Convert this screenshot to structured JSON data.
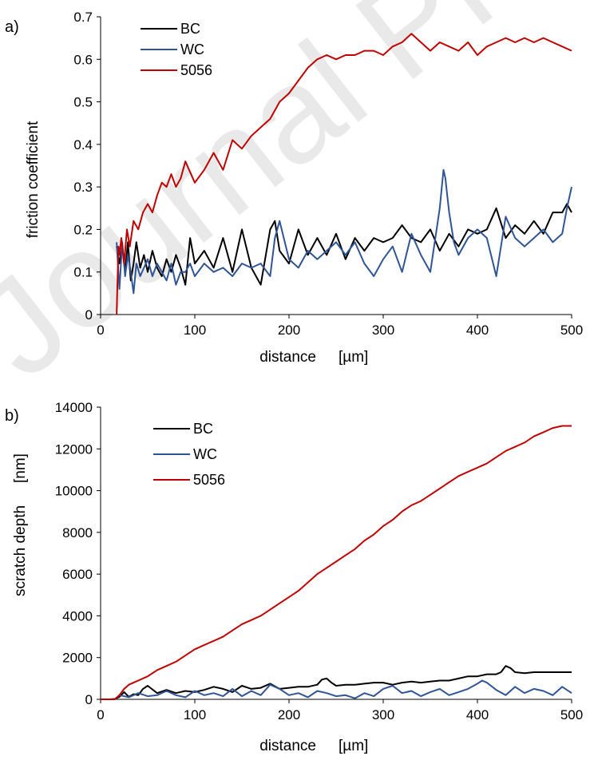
{
  "watermark": "Journal Pre-proof",
  "colors": {
    "BC": "#000000",
    "WC": "#2f5597",
    "5056": "#c00000"
  },
  "chart_data": [
    {
      "panel": "a)",
      "type": "line",
      "xlabel": "distance",
      "xunit": "[µm]",
      "ylabel": "friction coefficient",
      "xlim": [
        0,
        500
      ],
      "ylim": [
        0,
        0.7
      ],
      "xticks": [
        0,
        100,
        200,
        300,
        400,
        500
      ],
      "yticks": [
        0,
        0.1,
        0.2,
        0.3,
        0.4,
        0.5,
        0.6,
        0.7
      ],
      "ytick_labels": [
        "0",
        "0.1",
        "0.2",
        "0.3",
        "0.4",
        "0.5",
        "0.6",
        "0.7"
      ],
      "legend_position": "top-left",
      "series": [
        {
          "name": "BC",
          "color": "#000000",
          "x": [
            17,
            20,
            23,
            26,
            29,
            32,
            35,
            38,
            42,
            46,
            50,
            55,
            60,
            65,
            70,
            75,
            80,
            85,
            90,
            95,
            100,
            110,
            120,
            130,
            140,
            150,
            160,
            170,
            180,
            185,
            190,
            200,
            210,
            220,
            230,
            240,
            250,
            260,
            270,
            280,
            290,
            300,
            310,
            320,
            330,
            340,
            350,
            360,
            370,
            380,
            390,
            400,
            410,
            420,
            430,
            440,
            450,
            460,
            470,
            480,
            490,
            495,
            500
          ],
          "y": [
            0.16,
            0.12,
            0.16,
            0.1,
            0.17,
            0.08,
            0.12,
            0.17,
            0.11,
            0.14,
            0.1,
            0.15,
            0.11,
            0.09,
            0.13,
            0.1,
            0.14,
            0.11,
            0.07,
            0.18,
            0.12,
            0.15,
            0.11,
            0.18,
            0.1,
            0.2,
            0.11,
            0.07,
            0.2,
            0.22,
            0.15,
            0.12,
            0.2,
            0.14,
            0.18,
            0.14,
            0.19,
            0.13,
            0.18,
            0.15,
            0.18,
            0.17,
            0.18,
            0.21,
            0.18,
            0.17,
            0.2,
            0.15,
            0.19,
            0.16,
            0.2,
            0.19,
            0.2,
            0.25,
            0.18,
            0.21,
            0.19,
            0.22,
            0.19,
            0.24,
            0.24,
            0.26,
            0.24
          ]
        },
        {
          "name": "WC",
          "color": "#2f5597",
          "x": [
            17,
            20,
            23,
            26,
            29,
            32,
            35,
            38,
            42,
            46,
            50,
            55,
            60,
            65,
            70,
            75,
            80,
            85,
            90,
            95,
            100,
            110,
            120,
            130,
            140,
            150,
            160,
            170,
            180,
            185,
            190,
            200,
            210,
            220,
            230,
            240,
            250,
            260,
            270,
            280,
            290,
            300,
            310,
            320,
            330,
            340,
            350,
            360,
            364,
            366,
            368,
            370,
            375,
            380,
            390,
            400,
            410,
            420,
            430,
            440,
            450,
            460,
            470,
            480,
            490,
            495,
            500
          ],
          "y": [
            0.17,
            0.06,
            0.17,
            0.09,
            0.14,
            0.1,
            0.05,
            0.12,
            0.09,
            0.11,
            0.13,
            0.09,
            0.12,
            0.1,
            0.08,
            0.12,
            0.07,
            0.1,
            0.1,
            0.12,
            0.09,
            0.12,
            0.1,
            0.11,
            0.09,
            0.12,
            0.11,
            0.12,
            0.09,
            0.18,
            0.22,
            0.13,
            0.11,
            0.15,
            0.13,
            0.15,
            0.17,
            0.14,
            0.17,
            0.12,
            0.09,
            0.13,
            0.16,
            0.1,
            0.19,
            0.14,
            0.1,
            0.25,
            0.34,
            0.32,
            0.28,
            0.24,
            0.17,
            0.14,
            0.18,
            0.2,
            0.18,
            0.09,
            0.23,
            0.18,
            0.16,
            0.18,
            0.2,
            0.17,
            0.19,
            0.25,
            0.3
          ]
        },
        {
          "name": "5056",
          "color": "#c00000",
          "x": [
            17,
            18,
            19,
            20,
            22,
            25,
            28,
            31,
            35,
            40,
            45,
            50,
            55,
            60,
            65,
            70,
            75,
            80,
            85,
            90,
            100,
            110,
            120,
            130,
            140,
            150,
            160,
            170,
            180,
            190,
            200,
            210,
            220,
            230,
            240,
            250,
            260,
            270,
            280,
            290,
            300,
            310,
            320,
            330,
            340,
            350,
            360,
            370,
            380,
            390,
            400,
            410,
            420,
            430,
            440,
            450,
            460,
            470,
            480,
            490,
            500
          ],
          "y": [
            0.0,
            0.08,
            0.16,
            0.14,
            0.18,
            0.12,
            0.2,
            0.16,
            0.22,
            0.2,
            0.24,
            0.26,
            0.24,
            0.28,
            0.31,
            0.3,
            0.33,
            0.3,
            0.32,
            0.36,
            0.31,
            0.34,
            0.38,
            0.34,
            0.41,
            0.39,
            0.42,
            0.44,
            0.46,
            0.5,
            0.52,
            0.55,
            0.58,
            0.6,
            0.61,
            0.6,
            0.61,
            0.61,
            0.62,
            0.62,
            0.61,
            0.63,
            0.64,
            0.66,
            0.64,
            0.62,
            0.64,
            0.63,
            0.62,
            0.64,
            0.61,
            0.63,
            0.64,
            0.65,
            0.64,
            0.65,
            0.64,
            0.65,
            0.64,
            0.63,
            0.62
          ]
        }
      ]
    },
    {
      "panel": "b)",
      "type": "line",
      "xlabel": "distance",
      "xunit": "[µm]",
      "ylabel": "scratch depth",
      "yunit": "[nm]",
      "xlim": [
        0,
        500
      ],
      "ylim": [
        0,
        14000
      ],
      "xticks": [
        0,
        100,
        200,
        300,
        400,
        500
      ],
      "yticks": [
        0,
        2000,
        4000,
        6000,
        8000,
        10000,
        12000,
        14000
      ],
      "legend_position": "top-left",
      "series": [
        {
          "name": "BC",
          "color": "#000000",
          "x": [
            0,
            10,
            15,
            20,
            25,
            30,
            35,
            40,
            45,
            50,
            60,
            70,
            80,
            90,
            100,
            110,
            120,
            130,
            140,
            150,
            160,
            170,
            180,
            190,
            200,
            210,
            220,
            230,
            235,
            240,
            245,
            250,
            260,
            270,
            280,
            290,
            300,
            310,
            320,
            330,
            340,
            350,
            360,
            370,
            380,
            390,
            400,
            410,
            420,
            425,
            430,
            435,
            440,
            450,
            460,
            470,
            480,
            490,
            500
          ],
          "y": [
            0,
            0,
            20,
            120,
            350,
            120,
            250,
            200,
            500,
            650,
            300,
            450,
            300,
            400,
            350,
            450,
            600,
            500,
            350,
            650,
            500,
            550,
            750,
            500,
            550,
            600,
            600,
            700,
            950,
            1000,
            800,
            650,
            700,
            700,
            750,
            800,
            800,
            700,
            800,
            850,
            800,
            850,
            900,
            900,
            1000,
            1100,
            1100,
            1200,
            1200,
            1300,
            1600,
            1500,
            1300,
            1250,
            1300,
            1300,
            1300,
            1300,
            1300
          ]
        },
        {
          "name": "WC",
          "color": "#2f5597",
          "x": [
            0,
            10,
            15,
            20,
            30,
            40,
            50,
            60,
            70,
            80,
            90,
            100,
            110,
            120,
            130,
            140,
            150,
            160,
            170,
            180,
            190,
            200,
            210,
            220,
            230,
            240,
            250,
            260,
            270,
            280,
            290,
            300,
            310,
            320,
            330,
            340,
            350,
            360,
            370,
            380,
            390,
            400,
            405,
            410,
            420,
            430,
            440,
            450,
            460,
            470,
            480,
            490,
            500
          ],
          "y": [
            0,
            0,
            0,
            200,
            100,
            300,
            150,
            200,
            400,
            200,
            100,
            400,
            200,
            300,
            150,
            500,
            150,
            400,
            200,
            700,
            500,
            200,
            300,
            100,
            400,
            300,
            150,
            200,
            50,
            300,
            150,
            500,
            650,
            300,
            400,
            150,
            350,
            500,
            200,
            350,
            500,
            750,
            900,
            800,
            450,
            200,
            600,
            300,
            500,
            400,
            200,
            600,
            300
          ]
        },
        {
          "name": "5056",
          "color": "#c00000",
          "x": [
            0,
            10,
            15,
            20,
            25,
            30,
            35,
            40,
            50,
            60,
            70,
            80,
            90,
            100,
            110,
            120,
            130,
            140,
            150,
            160,
            170,
            180,
            190,
            200,
            210,
            220,
            230,
            240,
            250,
            260,
            270,
            280,
            290,
            300,
            310,
            320,
            330,
            340,
            350,
            360,
            370,
            380,
            390,
            400,
            410,
            420,
            430,
            440,
            450,
            460,
            470,
            480,
            490,
            500
          ],
          "y": [
            0,
            0,
            0,
            200,
            500,
            700,
            800,
            900,
            1100,
            1400,
            1600,
            1800,
            2100,
            2400,
            2600,
            2800,
            3000,
            3300,
            3600,
            3800,
            4000,
            4300,
            4600,
            4900,
            5200,
            5600,
            6000,
            6300,
            6600,
            6900,
            7200,
            7600,
            7900,
            8300,
            8600,
            9000,
            9300,
            9500,
            9800,
            10100,
            10400,
            10700,
            10900,
            11100,
            11300,
            11600,
            11900,
            12100,
            12300,
            12600,
            12800,
            13000,
            13100,
            13100
          ]
        }
      ]
    }
  ]
}
